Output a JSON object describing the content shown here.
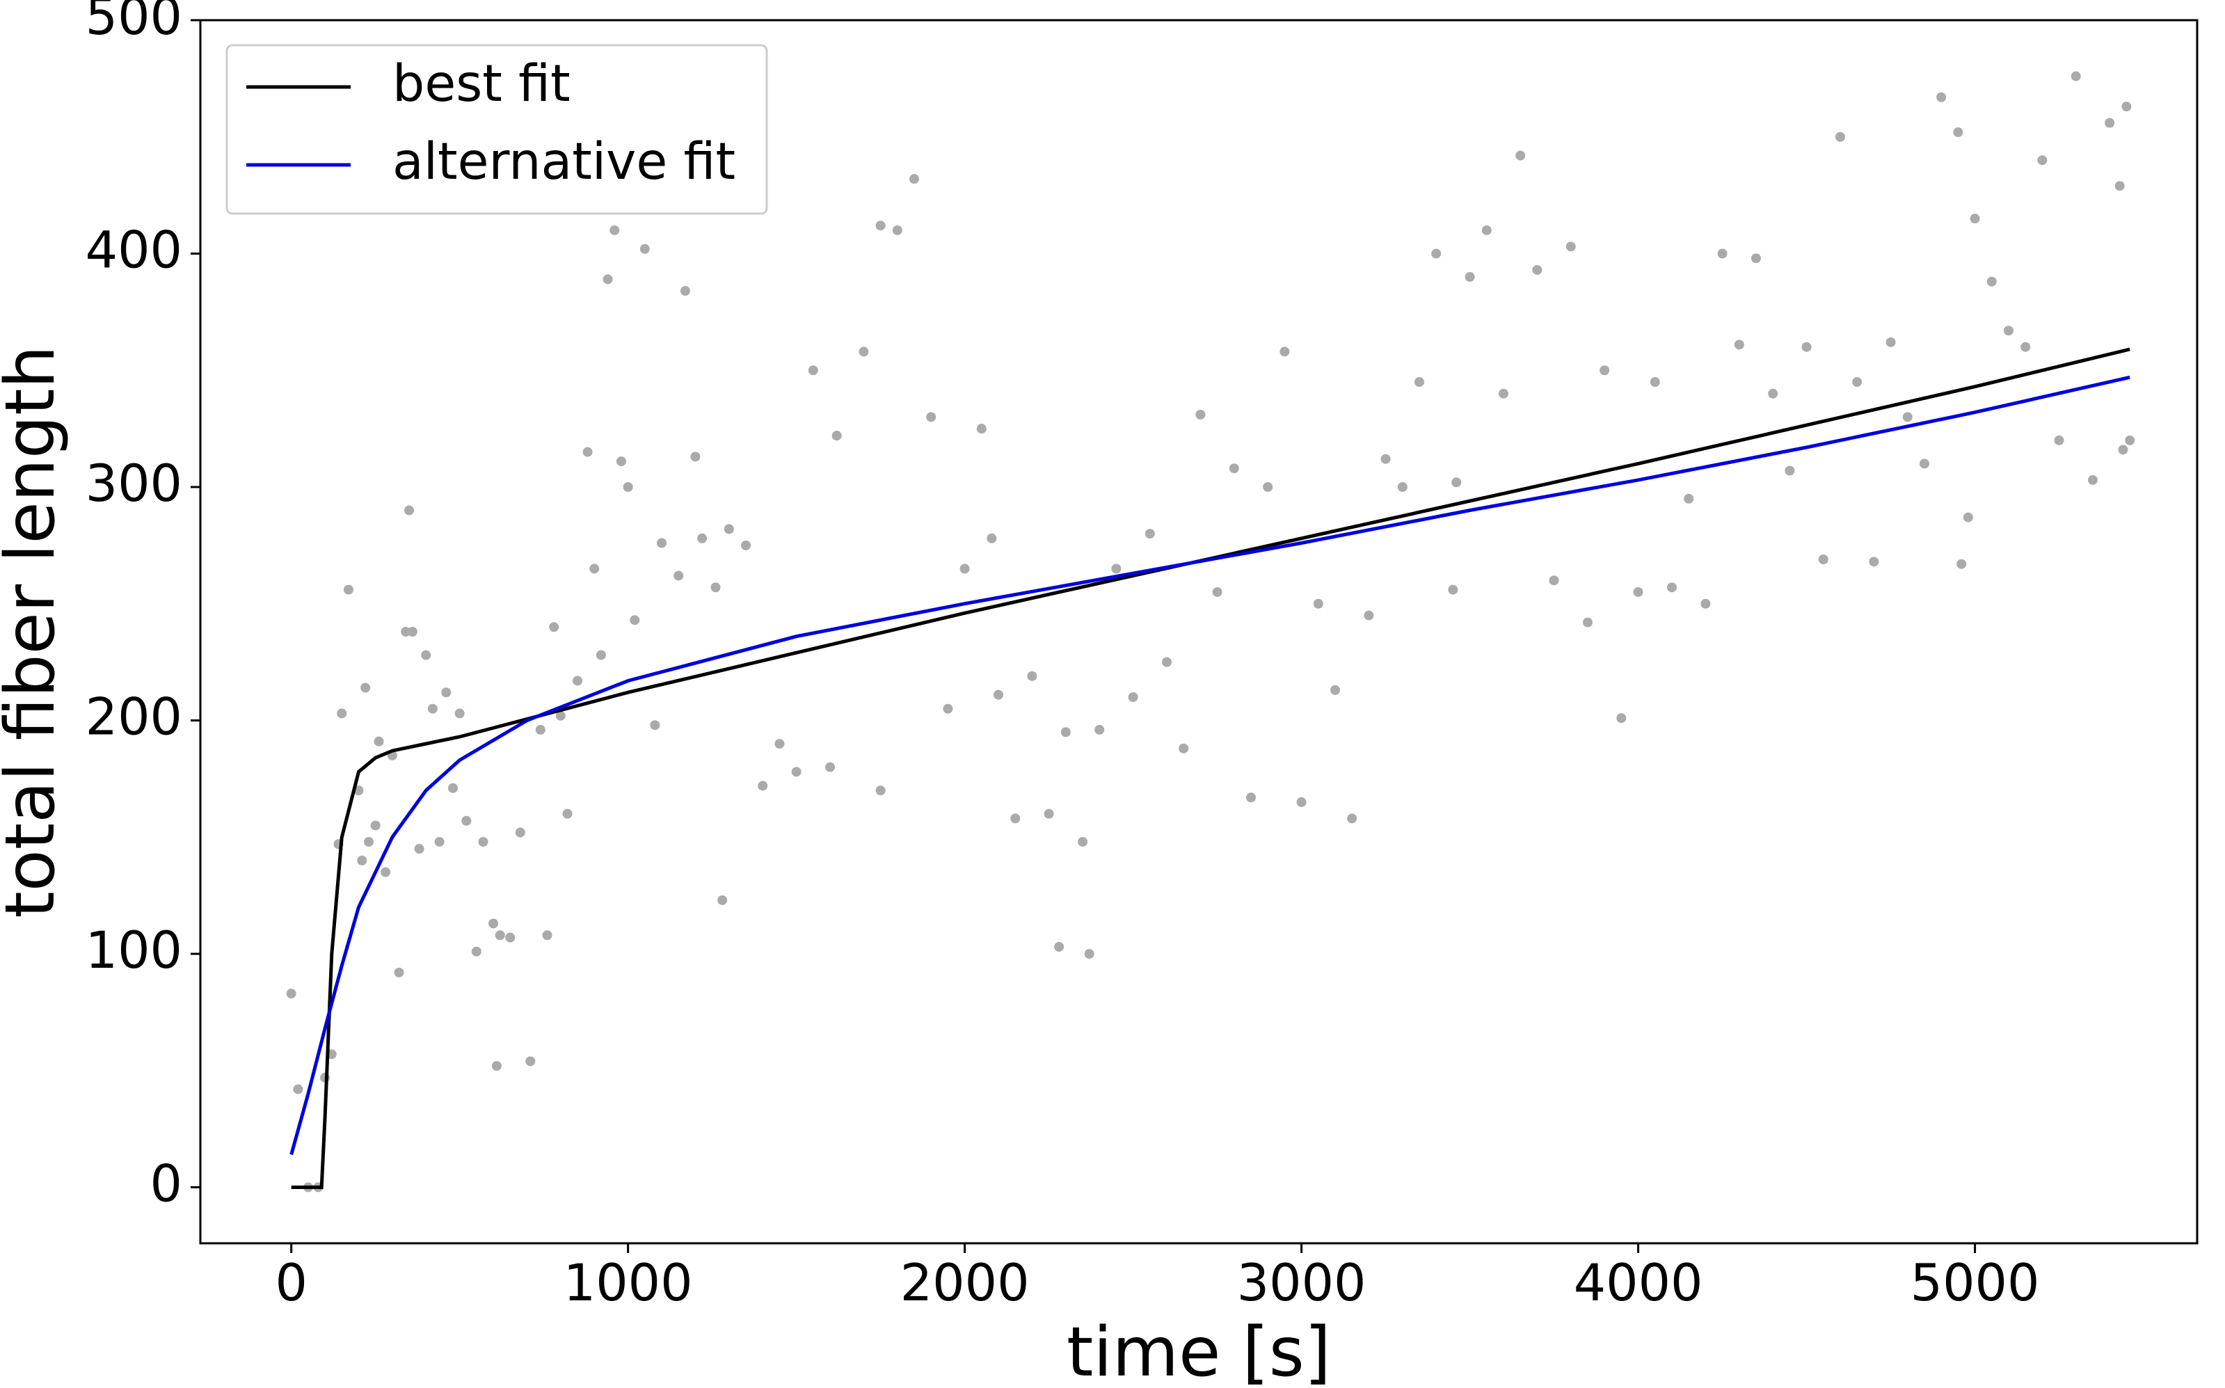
{
  "chart_data": {
    "type": "scatter",
    "xlabel": "time [s]",
    "ylabel": "total fiber length",
    "xlim": [
      -270,
      5660
    ],
    "ylim": [
      -24,
      500
    ],
    "xticks": [
      0,
      1000,
      2000,
      3000,
      4000,
      5000
    ],
    "yticks": [
      0,
      100,
      200,
      300,
      400,
      500
    ],
    "legend": "upper left",
    "points": {
      "color": "#aaaaaa",
      "x": [
        0,
        20,
        50,
        80,
        100,
        120,
        140,
        150,
        170,
        200,
        210,
        220,
        230,
        250,
        260,
        280,
        300,
        320,
        340,
        350,
        360,
        380,
        400,
        420,
        440,
        460,
        480,
        500,
        520,
        550,
        570,
        600,
        610,
        620,
        650,
        680,
        710,
        740,
        760,
        780,
        800,
        820,
        850,
        880,
        900,
        920,
        940,
        960,
        980,
        1000,
        1020,
        1050,
        1080,
        1100,
        1150,
        1170,
        1200,
        1220,
        1260,
        1280,
        1300,
        1350,
        1400,
        1450,
        1500,
        1550,
        1600,
        1620,
        1700,
        1750,
        1800,
        1850,
        1900,
        1950,
        2000,
        2050,
        2100,
        2150,
        2200,
        2250,
        2280,
        2300,
        2350,
        2370,
        2400,
        2450,
        2500,
        2550,
        2600,
        2650,
        2700,
        2750,
        2800,
        2850,
        2900,
        2950,
        3000,
        3050,
        3100,
        3150,
        3200,
        3250,
        3300,
        3350,
        3400,
        3450,
        3500,
        3550,
        3600,
        3650,
        3700,
        3750,
        3800,
        3850,
        3900,
        3950,
        4000,
        4050,
        4100,
        4150,
        4200,
        4250,
        4300,
        4350,
        4400,
        4450,
        4500,
        4550,
        4600,
        4650,
        4700,
        4750,
        4800,
        4850,
        4900,
        4950,
        5000,
        5050,
        5100,
        5150,
        5200,
        5250,
        5300,
        5350,
        5400,
        5430,
        5450,
        5460,
        5440,
        4980,
        4960,
        3460,
        2080,
        1750
      ],
      "values": [
        83,
        42,
        0,
        0,
        47,
        57,
        147,
        203,
        256,
        170,
        140,
        214,
        148,
        155,
        191,
        135,
        185,
        92,
        238,
        290,
        238,
        145,
        228,
        205,
        148,
        212,
        171,
        203,
        157,
        101,
        148,
        113,
        52,
        108,
        107,
        152,
        54,
        196,
        108,
        240,
        202,
        160,
        217,
        315,
        265,
        228,
        389,
        410,
        311,
        300,
        243,
        402,
        198,
        276,
        262,
        384,
        313,
        278,
        257,
        123,
        282,
        275,
        172,
        190,
        178,
        350,
        180,
        322,
        358,
        412,
        410,
        432,
        330,
        205,
        265,
        325,
        211,
        158,
        219,
        160,
        103,
        195,
        148,
        100,
        196,
        265,
        210,
        280,
        225,
        188,
        331,
        255,
        308,
        167,
        300,
        358,
        165,
        250,
        213,
        158,
        245,
        312,
        300,
        345,
        400,
        256,
        390,
        410,
        340,
        442,
        393,
        260,
        403,
        242,
        350,
        201,
        255,
        345,
        257,
        295,
        250,
        400,
        361,
        398,
        340,
        307,
        360,
        269,
        450,
        345,
        268,
        362,
        330,
        310,
        467,
        452,
        415,
        388,
        367,
        360,
        440,
        320,
        476,
        303,
        456,
        429,
        463,
        320,
        316,
        287,
        267,
        302,
        278,
        170
      ]
    },
    "series": [
      {
        "name": "best fit",
        "color": "#000000",
        "x": [
          0,
          90,
          100,
          120,
          150,
          200,
          250,
          300,
          400,
          500,
          1000,
          2000,
          3000,
          4000,
          5000,
          5460
        ],
        "values": [
          0,
          0,
          30,
          100,
          150,
          178,
          184,
          187,
          190,
          193,
          212,
          246,
          278,
          310,
          343,
          359
        ]
      },
      {
        "name": "alternative fit",
        "color": "#0000dd",
        "x": [
          0,
          50,
          100,
          150,
          200,
          300,
          400,
          500,
          700,
          1000,
          1500,
          2000,
          2500,
          3000,
          3500,
          4000,
          4500,
          5000,
          5460
        ],
        "values": [
          14,
          40,
          68,
          95,
          120,
          150,
          170,
          183,
          200,
          217,
          236,
          250,
          263,
          276,
          290,
          303,
          317,
          332,
          347
        ]
      }
    ]
  }
}
